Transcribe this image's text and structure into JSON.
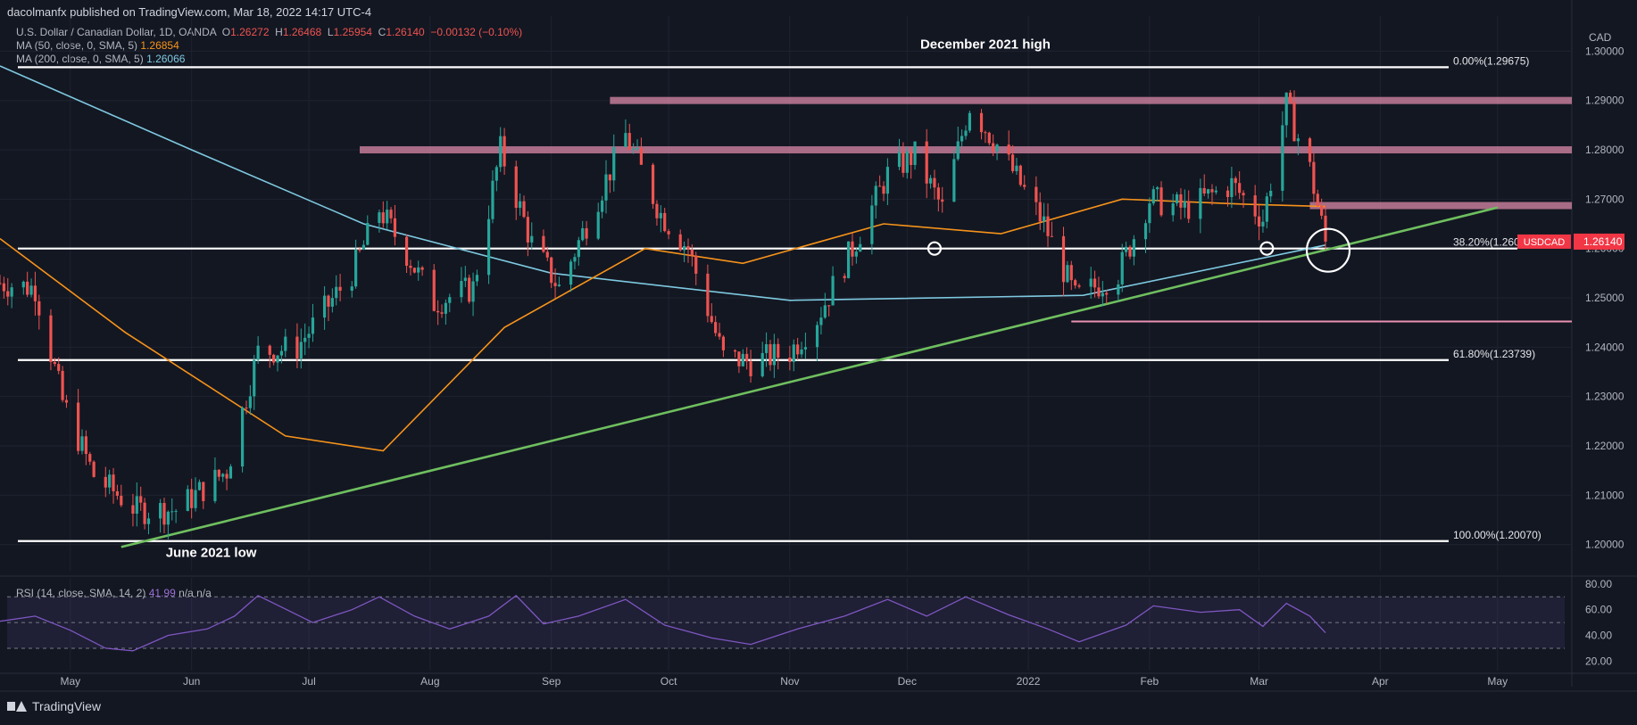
{
  "publisher": "dacolmanfx published on TradingView.com, Mar 18, 2022 14:17 UTC-4",
  "legend": {
    "symbol": "U.S. Dollar / Canadian Dollar, 1D, OANDA",
    "o_label": "O",
    "o": "1.26272",
    "h_label": "H",
    "h": "1.26468",
    "l_label": "L",
    "l": "1.25954",
    "c_label": "C",
    "c": "1.26140",
    "change": "−0.00132 (−0.10%)",
    "ma50_label": "MA (50, close, 0, SMA, 5)",
    "ma50": "1.26854",
    "ma200_label": "MA (200, close, 0, SMA, 5)",
    "ma200": "1.26066"
  },
  "rsi_legend": {
    "label": "RSI (14, close, SMA, 14, 2)",
    "value": "41.99",
    "na": "n/a  n/a"
  },
  "footer": {
    "brand": "TradingView"
  },
  "colors": {
    "background": "#131722",
    "up": "#26a69a",
    "down": "#ef5350",
    "ma50": "#f7931a",
    "ma200": "#7ec9e0",
    "trendline": "#6fbf5f",
    "resistance": "#e891b0",
    "rsi": "#7e57c2"
  },
  "chart_data": {
    "type": "candlestick",
    "symbol": "USDCAD",
    "currency": "CAD",
    "ylim": [
      1.1965,
      1.3035
    ],
    "yticks": [
      1.2,
      1.21,
      1.22,
      1.23,
      1.24,
      1.25,
      1.26,
      1.27,
      1.28,
      1.29,
      1.3
    ],
    "ytick_labels": [
      "1.20000",
      "1.21000",
      "1.22000",
      "1.23000",
      "1.24000",
      "1.25000",
      "1.26000",
      "1.27000",
      "1.28000",
      "1.29000",
      "1.30000"
    ],
    "xlim": [
      "2021-04-13",
      "2022-05-20"
    ],
    "month_ticks": [
      {
        "date": "2021-05-01",
        "label": "May"
      },
      {
        "date": "2021-06-01",
        "label": "Jun"
      },
      {
        "date": "2021-07-01",
        "label": "Jul"
      },
      {
        "date": "2021-08-01",
        "label": "Aug"
      },
      {
        "date": "2021-09-01",
        "label": "Sep"
      },
      {
        "date": "2021-10-01",
        "label": "Oct"
      },
      {
        "date": "2021-11-01",
        "label": "Nov"
      },
      {
        "date": "2021-12-01",
        "label": "Dec"
      },
      {
        "date": "2022-01-01",
        "label": "2022"
      },
      {
        "date": "2022-02-01",
        "label": "Feb"
      },
      {
        "date": "2022-03-01",
        "label": "Mar"
      },
      {
        "date": "2022-04-01",
        "label": "Apr"
      },
      {
        "date": "2022-05-01",
        "label": "May"
      }
    ],
    "close_path": [
      [
        "2021-04-13",
        1.253
      ],
      [
        "2021-04-22",
        1.252
      ],
      [
        "2021-04-29",
        1.229
      ],
      [
        "2021-05-07",
        1.214
      ],
      [
        "2021-05-18",
        1.207
      ],
      [
        "2021-05-28",
        1.207
      ],
      [
        "2021-06-10",
        1.215
      ],
      [
        "2021-06-18",
        1.239
      ],
      [
        "2021-06-28",
        1.24
      ],
      [
        "2021-07-12",
        1.255
      ],
      [
        "2021-07-19",
        1.268
      ],
      [
        "2021-07-26",
        1.259
      ],
      [
        "2021-08-02",
        1.249
      ],
      [
        "2021-08-12",
        1.252
      ],
      [
        "2021-08-19",
        1.28
      ],
      [
        "2021-08-27",
        1.261
      ],
      [
        "2021-09-03",
        1.252
      ],
      [
        "2021-09-10",
        1.265
      ],
      [
        "2021-09-20",
        1.283
      ],
      [
        "2021-09-29",
        1.267
      ],
      [
        "2021-10-06",
        1.26
      ],
      [
        "2021-10-15",
        1.238
      ],
      [
        "2021-10-22",
        1.237
      ],
      [
        "2021-11-01",
        1.239
      ],
      [
        "2021-11-08",
        1.246
      ],
      [
        "2021-11-17",
        1.26
      ],
      [
        "2021-11-26",
        1.275
      ],
      [
        "2021-12-03",
        1.279
      ],
      [
        "2021-12-10",
        1.268
      ],
      [
        "2021-12-17",
        1.289
      ],
      [
        "2021-12-24",
        1.281
      ],
      [
        "2022-01-05",
        1.265
      ],
      [
        "2022-01-13",
        1.25
      ],
      [
        "2022-01-24",
        1.255
      ],
      [
        "2022-02-01",
        1.27
      ],
      [
        "2022-02-10",
        1.268
      ],
      [
        "2022-02-22",
        1.273
      ],
      [
        "2022-03-02",
        1.266
      ],
      [
        "2022-03-08",
        1.289
      ],
      [
        "2022-03-14",
        1.276
      ],
      [
        "2022-03-18",
        1.2614
      ]
    ],
    "ma50_path": [
      [
        "2021-04-13",
        1.262
      ],
      [
        "2021-05-15",
        1.243
      ],
      [
        "2021-06-25",
        1.222
      ],
      [
        "2021-07-20",
        1.219
      ],
      [
        "2021-08-20",
        1.244
      ],
      [
        "2021-09-25",
        1.26
      ],
      [
        "2021-10-20",
        1.257
      ],
      [
        "2021-11-25",
        1.265
      ],
      [
        "2021-12-25",
        1.263
      ],
      [
        "2022-01-25",
        1.27
      ],
      [
        "2022-02-25",
        1.269
      ],
      [
        "2022-03-18",
        1.2685
      ]
    ],
    "ma200_path": [
      [
        "2021-04-13",
        1.297
      ],
      [
        "2021-06-01",
        1.28
      ],
      [
        "2021-07-15",
        1.265
      ],
      [
        "2021-09-01",
        1.255
      ],
      [
        "2021-11-01",
        1.2495
      ],
      [
        "2022-01-15",
        1.2505
      ],
      [
        "2022-03-18",
        1.2607
      ]
    ],
    "support_trendline": [
      [
        "2021-05-14",
        1.1995
      ],
      [
        "2022-05-01",
        1.2683
      ]
    ],
    "fib_levels": [
      {
        "ratio": "0.00%",
        "price": 1.29675,
        "label": "0.00%(1.29675)"
      },
      {
        "ratio": "38.20%",
        "price": 1.26,
        "label": "38.20%(1.2600"
      },
      {
        "ratio": "61.80%",
        "price": 1.23739,
        "label": "61.80%(1.23739)"
      },
      {
        "ratio": "100.00%",
        "price": 1.2007,
        "label": "100.00%(1.20070)"
      }
    ],
    "resistance_zones": [
      {
        "price": 1.29,
        "from": "2021-09-16",
        "to": "2022-05-20"
      },
      {
        "price": 1.28,
        "from": "2021-07-14",
        "to": "2022-05-20"
      },
      {
        "price": 1.2687,
        "from": "2022-03-14",
        "to": "2022-05-20"
      }
    ],
    "support_line": {
      "price": 1.2452,
      "from": "2022-01-12",
      "to": "2022-05-20"
    },
    "circled_touches": [
      {
        "date": "2021-12-08",
        "price": 1.26
      },
      {
        "date": "2022-03-03",
        "price": 1.26
      },
      {
        "date": "2022-03-18",
        "price": 1.26
      }
    ],
    "annotations": [
      {
        "text": "December 2021 high",
        "date": "2021-12-21",
        "price": 1.3005
      },
      {
        "text": "June 2021 low",
        "date": "2021-06-06",
        "price": 1.1975
      }
    ],
    "last_price": {
      "label": "USDCAD",
      "value": "1.26140",
      "price": 1.2614
    },
    "rsi": {
      "ylim": [
        14,
        82
      ],
      "levels": [
        70,
        50,
        30
      ],
      "ytick_labels": [
        "80.00",
        "60.00",
        "40.00",
        "20.00"
      ],
      "ytick_values": [
        80,
        60,
        40,
        20
      ],
      "path": [
        [
          "2021-04-13",
          51
        ],
        [
          "2021-04-22",
          55
        ],
        [
          "2021-05-01",
          44
        ],
        [
          "2021-05-10",
          30
        ],
        [
          "2021-05-17",
          28
        ],
        [
          "2021-05-26",
          40
        ],
        [
          "2021-06-05",
          45
        ],
        [
          "2021-06-12",
          55
        ],
        [
          "2021-06-18",
          71
        ],
        [
          "2021-06-24",
          62
        ],
        [
          "2021-07-02",
          50
        ],
        [
          "2021-07-12",
          60
        ],
        [
          "2021-07-19",
          70
        ],
        [
          "2021-07-28",
          55
        ],
        [
          "2021-08-06",
          45
        ],
        [
          "2021-08-16",
          55
        ],
        [
          "2021-08-23",
          71
        ],
        [
          "2021-08-30",
          49
        ],
        [
          "2021-09-08",
          55
        ],
        [
          "2021-09-20",
          68
        ],
        [
          "2021-09-30",
          48
        ],
        [
          "2021-10-12",
          38
        ],
        [
          "2021-10-22",
          33
        ],
        [
          "2021-11-03",
          45
        ],
        [
          "2021-11-15",
          55
        ],
        [
          "2021-11-26",
          68
        ],
        [
          "2021-12-06",
          55
        ],
        [
          "2021-12-16",
          70
        ],
        [
          "2021-12-27",
          56
        ],
        [
          "2022-01-06",
          45
        ],
        [
          "2022-01-14",
          35
        ],
        [
          "2022-01-26",
          48
        ],
        [
          "2022-02-02",
          63
        ],
        [
          "2022-02-14",
          58
        ],
        [
          "2022-02-24",
          60
        ],
        [
          "2022-03-02",
          47
        ],
        [
          "2022-03-08",
          65
        ],
        [
          "2022-03-14",
          55
        ],
        [
          "2022-03-18",
          42
        ]
      ]
    }
  }
}
